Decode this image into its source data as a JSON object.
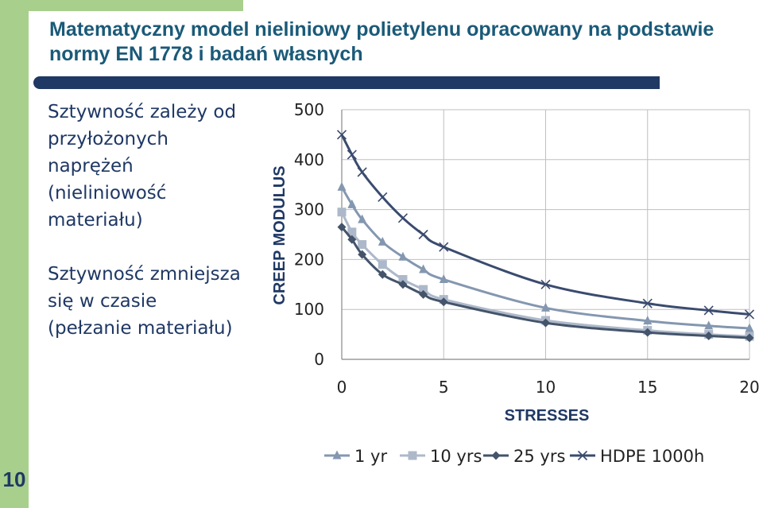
{
  "slide": {
    "number": "10",
    "title": "Matematyczny model nieliniowy polietylenu opracowany na podstawie normy EN 1778 i badań własnych",
    "bullets": [
      "Sztywność zależy od\nprzyłożonych\nnaprężeń\n(nieliniowość\nmateriału)",
      "Sztywność zmniejsza\nsię w czasie\n(pełzanie materiału)"
    ]
  },
  "colors": {
    "side_bar": "#a8cf8c",
    "title_text": "#1a5a78",
    "title_bar": "#1f3864",
    "grid": "#bfbfbf"
  },
  "chart_data": {
    "type": "line",
    "xlabel": "STRESSES",
    "ylabel": "CREEP MODULUS",
    "xlim": [
      0,
      20
    ],
    "ylim": [
      0,
      500
    ],
    "xticks": [
      0,
      5,
      10,
      15,
      20
    ],
    "yticks": [
      0,
      100,
      200,
      300,
      400,
      500
    ],
    "grid": true,
    "legend_position": "bottom",
    "series": [
      {
        "name": "1 yr",
        "color": "#8497b0",
        "marker": "triangle",
        "x": [
          0,
          0.5,
          1,
          2,
          3,
          4,
          5,
          10,
          15,
          18,
          20
        ],
        "y": [
          345,
          310,
          280,
          235,
          205,
          180,
          160,
          103,
          77,
          67,
          62
        ]
      },
      {
        "name": "10 yrs",
        "color": "#adb9ca",
        "marker": "square",
        "x": [
          0,
          0.5,
          1,
          2,
          3,
          4,
          5,
          10,
          15,
          18,
          20
        ],
        "y": [
          295,
          255,
          230,
          190,
          160,
          140,
          120,
          78,
          58,
          50,
          46
        ]
      },
      {
        "name": "25 yrs",
        "color": "#44546a",
        "marker": "diamond",
        "x": [
          0,
          0.5,
          1,
          2,
          3,
          4,
          5,
          10,
          15,
          18,
          20
        ],
        "y": [
          265,
          240,
          210,
          170,
          150,
          130,
          115,
          73,
          54,
          47,
          43
        ]
      },
      {
        "name": "HDPE 1000h",
        "color": "#3a4b6e",
        "marker": "x",
        "x": [
          0,
          0.5,
          1,
          2,
          3,
          4,
          5,
          10,
          15,
          18,
          20
        ],
        "y": [
          450,
          410,
          375,
          325,
          283,
          250,
          225,
          150,
          112,
          98,
          90
        ]
      }
    ]
  }
}
